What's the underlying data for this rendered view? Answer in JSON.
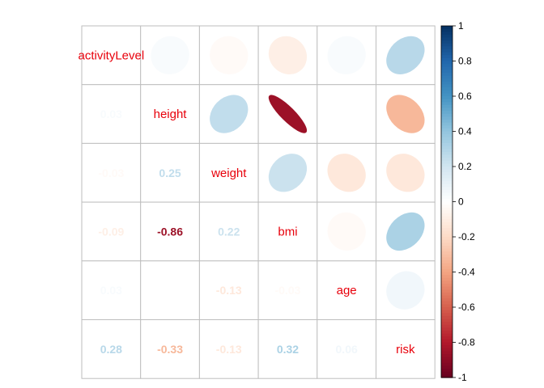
{
  "chart_data": {
    "type": "heatmap",
    "title": "",
    "variables": [
      "activityLevel",
      "height",
      "weight",
      "bmi",
      "age",
      "risk"
    ],
    "correlations": [
      [
        1,
        0.03,
        -0.03,
        -0.09,
        0.03,
        0.28
      ],
      [
        0.03,
        1,
        0.25,
        -0.86,
        0.0,
        -0.33
      ],
      [
        -0.03,
        0.25,
        1,
        0.22,
        -0.13,
        -0.13
      ],
      [
        -0.09,
        -0.86,
        0.22,
        1,
        -0.03,
        0.32
      ],
      [
        0.03,
        0.0,
        -0.13,
        -0.03,
        1,
        0.06
      ],
      [
        0.28,
        -0.33,
        -0.13,
        0.32,
        0.06,
        1
      ]
    ],
    "lower_labels": [
      {
        "row": 1,
        "col": 0,
        "text": "0.03"
      },
      {
        "row": 2,
        "col": 0,
        "text": "-0.03"
      },
      {
        "row": 2,
        "col": 1,
        "text": "0.25"
      },
      {
        "row": 3,
        "col": 0,
        "text": "-0.09"
      },
      {
        "row": 3,
        "col": 1,
        "text": "-0.86"
      },
      {
        "row": 3,
        "col": 2,
        "text": "0.22"
      },
      {
        "row": 4,
        "col": 0,
        "text": "0.03"
      },
      {
        "row": 4,
        "col": 1,
        "text": "0"
      },
      {
        "row": 4,
        "col": 2,
        "text": "-0.13"
      },
      {
        "row": 4,
        "col": 3,
        "text": "-0.03"
      },
      {
        "row": 5,
        "col": 0,
        "text": "0.28"
      },
      {
        "row": 5,
        "col": 1,
        "text": "-0.33"
      },
      {
        "row": 5,
        "col": 2,
        "text": "-0.13"
      },
      {
        "row": 5,
        "col": 3,
        "text": "0.32"
      },
      {
        "row": 5,
        "col": 4,
        "text": "0.06"
      }
    ],
    "upper_glyph": "ellipse",
    "lower_glyph": "number",
    "colorbar": {
      "range": [
        -1,
        1
      ],
      "ticks": [
        "-1",
        "-0.8",
        "-0.6",
        "-0.4",
        "-0.2",
        "0",
        "0.2",
        "0.4",
        "0.6",
        "0.8",
        "1"
      ],
      "placement": "right"
    },
    "colors": {
      "strong_negative": "#67001f",
      "negative": "#d6604d",
      "light_negative": "#fddbc7",
      "neutral": "#ffffff",
      "light_positive": "#d1e5f0",
      "positive": "#4393c3",
      "strong_positive": "#053061",
      "variable_label": "#e8000b",
      "grid": "#bebebe"
    }
  }
}
